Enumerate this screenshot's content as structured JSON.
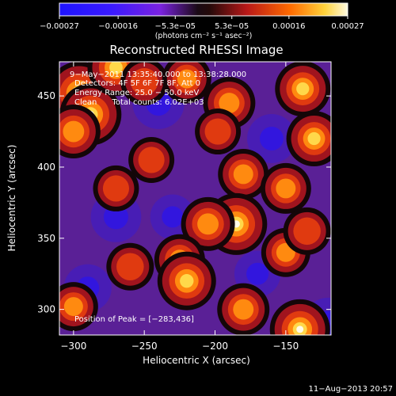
{
  "chart_data": {
    "type": "heatmap",
    "title": "Reconstructed RHESSI Image",
    "xlabel": "Heliocentric X (arcsec)",
    "ylabel": "Heliocentric Y (arcsec)",
    "xlim": [
      -310,
      -118
    ],
    "ylim": [
      282,
      474
    ],
    "x_ticks": [
      -300,
      -250,
      -200,
      -150
    ],
    "x_tick_labels": [
      "−300",
      "−250",
      "−200",
      "−150"
    ],
    "y_ticks": [
      300,
      350,
      400,
      450
    ],
    "y_tick_labels": [
      "300",
      "350",
      "400",
      "450"
    ],
    "colorbar": {
      "range": [
        -0.00027,
        0.00027
      ],
      "ticks": [
        -0.00027,
        -0.00016,
        -5.3e-05,
        5.3e-05,
        0.00016,
        0.00027
      ],
      "tick_labels": [
        "−0.00027",
        "−0.00016",
        "−5.3e−05",
        "5.3e−05",
        "0.00016",
        "0.00027"
      ],
      "unit_label": "(photons cm⁻² s⁻¹ asec⁻²)"
    },
    "annotations": [
      "9−May−2011 13:35:40.000 to 13:38:28.000",
      "Detectors: 4F 5F 6F 7F 8F, Att 0",
      "Energy Range: 25.0 − 50.0 keV",
      "Clean      Total counts: 6.02E+03"
    ],
    "peak_label": "Position of Peak = [−283,436]",
    "peak": [
      -283,
      436
    ],
    "hotspots": [
      {
        "x": -296,
        "y": 452,
        "value": 1.0
      },
      {
        "x": -288,
        "y": 437,
        "value": 0.95
      },
      {
        "x": -300,
        "y": 425,
        "value": 0.7
      },
      {
        "x": -270,
        "y": 470,
        "value": 0.8
      },
      {
        "x": -250,
        "y": 460,
        "value": 0.5
      },
      {
        "x": -220,
        "y": 462,
        "value": 0.55
      },
      {
        "x": -190,
        "y": 445,
        "value": 0.65
      },
      {
        "x": -198,
        "y": 425,
        "value": 0.45
      },
      {
        "x": -138,
        "y": 455,
        "value": 0.75
      },
      {
        "x": -130,
        "y": 420,
        "value": 0.75
      },
      {
        "x": -245,
        "y": 405,
        "value": 0.45
      },
      {
        "x": -180,
        "y": 395,
        "value": 0.6
      },
      {
        "x": -270,
        "y": 385,
        "value": 0.45
      },
      {
        "x": -185,
        "y": 360,
        "value": 0.95
      },
      {
        "x": -205,
        "y": 360,
        "value": 0.7
      },
      {
        "x": -150,
        "y": 385,
        "value": 0.6
      },
      {
        "x": -260,
        "y": 330,
        "value": 0.5
      },
      {
        "x": -225,
        "y": 335,
        "value": 0.6
      },
      {
        "x": -220,
        "y": 320,
        "value": 0.85
      },
      {
        "x": -150,
        "y": 340,
        "value": 0.55
      },
      {
        "x": -135,
        "y": 355,
        "value": 0.5
      },
      {
        "x": -300,
        "y": 302,
        "value": 0.55
      },
      {
        "x": -180,
        "y": 300,
        "value": 0.65
      },
      {
        "x": -140,
        "y": 286,
        "value": 0.9
      }
    ],
    "coldspots": [
      {
        "x": -240,
        "y": 445,
        "value": -0.6
      },
      {
        "x": -160,
        "y": 420,
        "value": -0.5
      },
      {
        "x": -270,
        "y": 365,
        "value": -0.55
      },
      {
        "x": -230,
        "y": 365,
        "value": -0.35
      },
      {
        "x": -290,
        "y": 315,
        "value": -0.45
      },
      {
        "x": -170,
        "y": 325,
        "value": -0.4
      },
      {
        "x": -120,
        "y": 290,
        "value": -0.6
      }
    ]
  },
  "footer": {
    "timestamp": "11−Aug−2013 20:57"
  }
}
